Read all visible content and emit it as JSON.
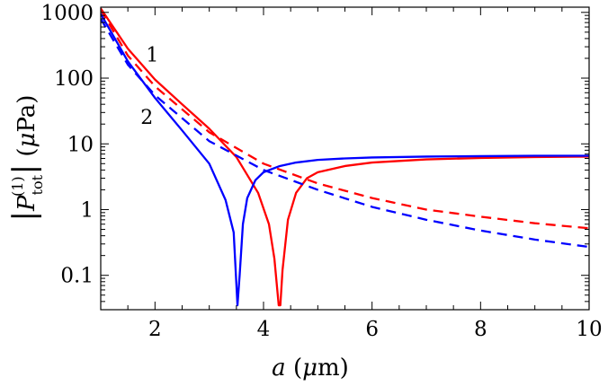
{
  "chart_data": {
    "type": "line",
    "title": "",
    "xlabel": "a (μm)",
    "ylabel": "|P_tot^(1)| (μPa)",
    "xlim": [
      1,
      10
    ],
    "ylim": [
      0.03,
      1200
    ],
    "yscale": "log",
    "grid": false,
    "legend": "none",
    "x_ticks": [
      2,
      4,
      6,
      8,
      10
    ],
    "y_ticks": [
      0.1,
      1,
      10,
      100,
      1000
    ],
    "y_tick_labels": [
      "0.1",
      "1",
      "10",
      "100",
      "1000"
    ],
    "annotations": [
      {
        "text": "1",
        "x": 1.95,
        "y": 180
      },
      {
        "text": "2",
        "x": 1.85,
        "y": 20
      }
    ],
    "series": [
      {
        "color": "#ff0000",
        "style": "solid",
        "x": [
          1.0,
          1.5,
          2.0,
          2.5,
          3.0,
          3.5,
          3.9,
          4.1,
          4.2,
          4.28,
          4.31,
          4.35,
          4.45,
          4.6,
          4.8,
          5.0,
          5.5,
          6.0,
          7.0,
          8.0,
          9.0,
          10.0
        ],
        "y": [
          1150,
          280,
          95,
          40,
          17,
          6.3,
          1.8,
          0.6,
          0.18,
          0.035,
          0.035,
          0.12,
          0.7,
          1.8,
          3.0,
          3.7,
          4.6,
          5.2,
          5.8,
          6.1,
          6.3,
          6.4
        ]
      },
      {
        "color": "#0000ff",
        "style": "solid",
        "x": [
          1.0,
          1.5,
          2.0,
          2.5,
          3.0,
          3.3,
          3.45,
          3.52,
          3.56,
          3.62,
          3.7,
          3.85,
          4.0,
          4.3,
          4.6,
          5.0,
          5.5,
          6.0,
          7.0,
          8.0,
          9.0,
          10.0
        ],
        "y": [
          950,
          180,
          50,
          16,
          5.0,
          1.4,
          0.45,
          0.035,
          0.1,
          0.6,
          1.5,
          2.8,
          3.7,
          4.6,
          5.2,
          5.7,
          6.0,
          6.2,
          6.4,
          6.5,
          6.6,
          6.6
        ]
      },
      {
        "color": "#ff0000",
        "style": "dashed",
        "x": [
          1.0,
          1.5,
          2.0,
          3.0,
          4.0,
          5.0,
          6.0,
          7.0,
          8.0,
          9.0,
          10.0
        ],
        "y": [
          1100,
          220,
          75,
          15,
          5.0,
          2.5,
          1.5,
          1.0,
          0.78,
          0.62,
          0.52
        ]
      },
      {
        "color": "#0000ff",
        "style": "dashed",
        "x": [
          1.0,
          1.5,
          2.0,
          3.0,
          4.0,
          5.0,
          6.0,
          7.0,
          8.0,
          9.0,
          10.0
        ],
        "y": [
          800,
          160,
          55,
          11,
          4.0,
          2.0,
          1.1,
          0.7,
          0.48,
          0.35,
          0.27
        ]
      }
    ]
  }
}
